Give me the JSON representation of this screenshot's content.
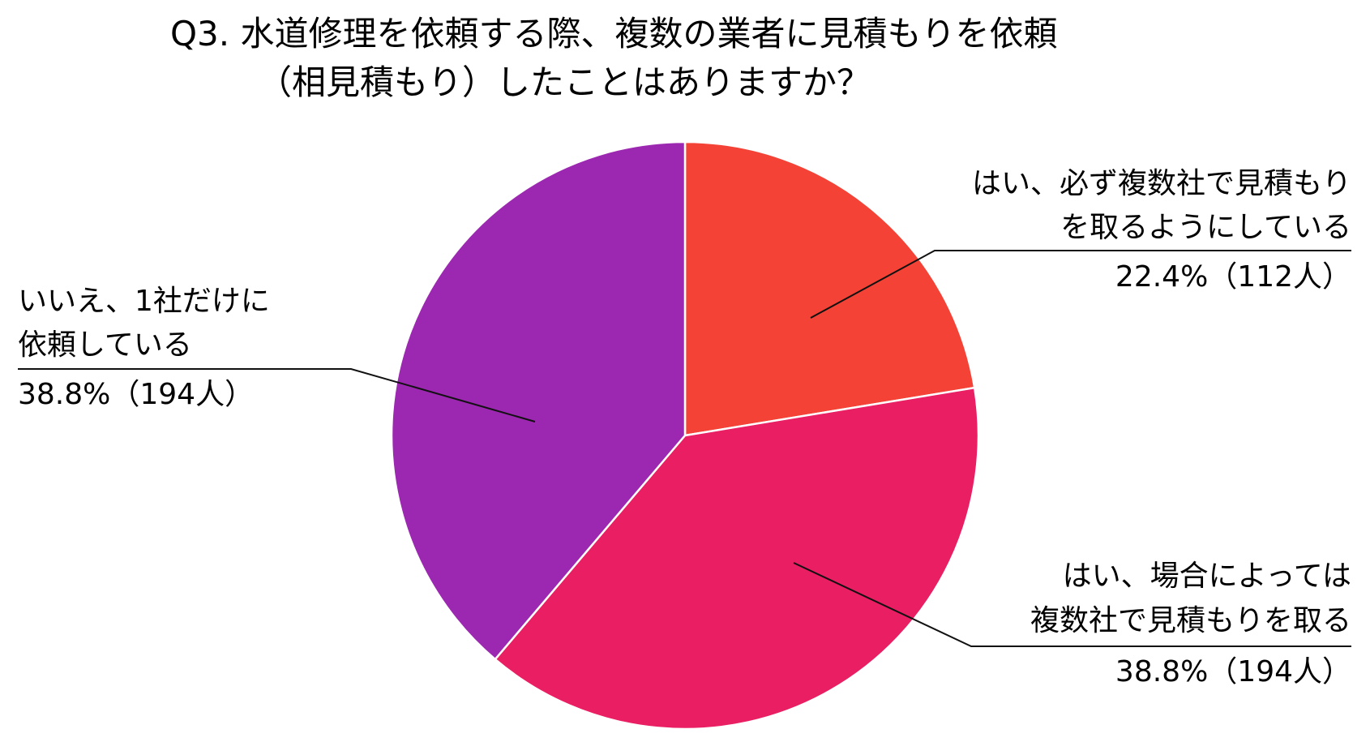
{
  "chart_data": {
    "type": "pie",
    "title": "Q3. 水道修理を依頼する際、複数の業者に見積もりを依頼",
    "title_line2": "（相見積もり）したことはありますか？",
    "slices": [
      {
        "label": "はい、必ず複数社で見積もりを取るようにしている",
        "label_lines": [
          "はい、必ず複数社で見積もり",
          "を取るようにしている"
        ],
        "percent": 22.4,
        "count": 112,
        "value_text": "22.4%（112人）",
        "color": "#f44336"
      },
      {
        "label": "はい、場合によっては複数社で見積もりを取る",
        "label_lines": [
          "はい、場合によっては",
          "複数社で見積もりを取る"
        ],
        "percent": 38.8,
        "count": 194,
        "value_text": "38.8%（194人）",
        "color": "#e91e63"
      },
      {
        "label": "いいえ、1社だけに依頼している",
        "label_lines": [
          "いいえ、1社だけに",
          "依頼している"
        ],
        "percent": 38.8,
        "count": 194,
        "value_text": "38.8%（194人）",
        "color": "#9c27b0"
      }
    ],
    "start_angle": "12 o'clock",
    "direction": "clockwise",
    "legend": "none"
  }
}
